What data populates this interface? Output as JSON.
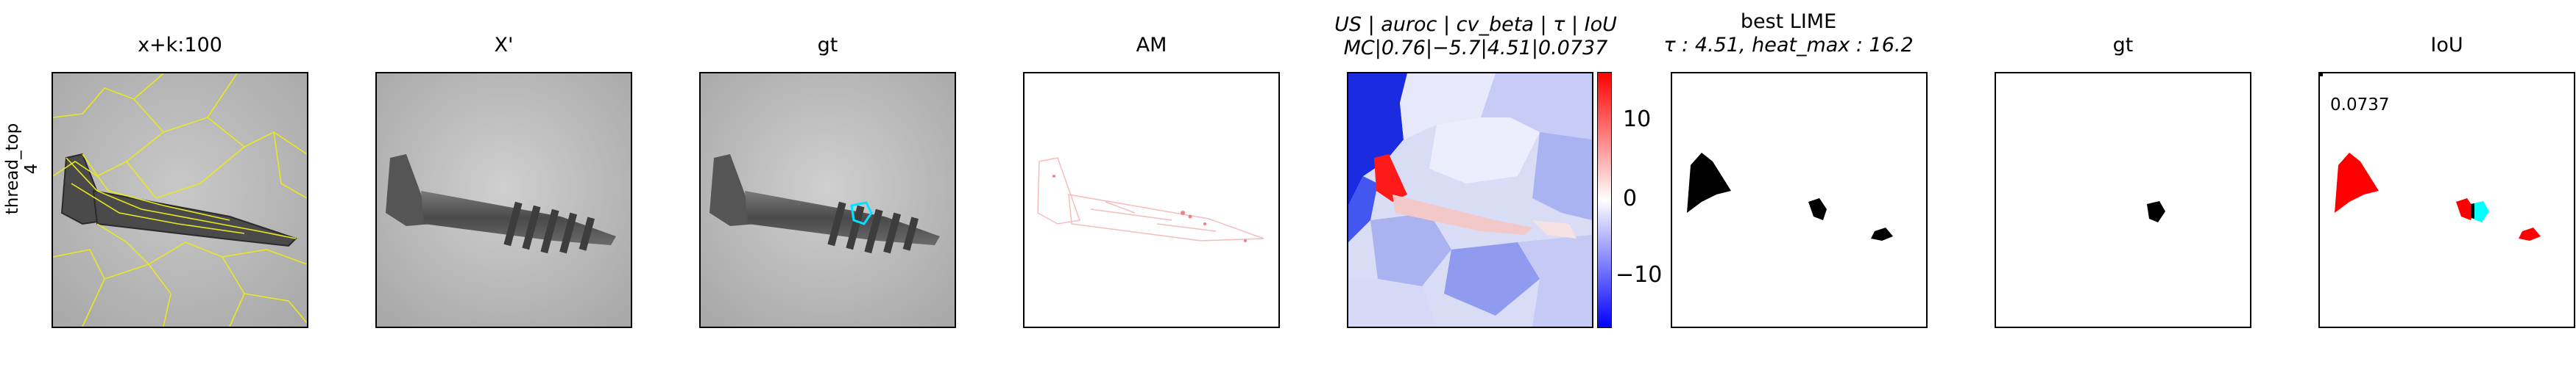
{
  "row_label": {
    "line1": "thread_top",
    "line2": "4"
  },
  "panels": [
    {
      "title": "x+k:100"
    },
    {
      "title": "X'"
    },
    {
      "title": "gt"
    },
    {
      "title": "AM"
    },
    {
      "title_line1": "US | auroc | cv_beta | τ | IoU",
      "title_line2": "MC|0.76|−5.7|4.51|0.0737"
    },
    {
      "title_line1": "best LIME",
      "title_line2": "τ : 4.51, heat_max : 16.2"
    },
    {
      "title": "gt"
    },
    {
      "title": "IoU",
      "value_label": "0.0737"
    }
  ],
  "colorbar": {
    "ticks": [
      "10",
      "0",
      "−10"
    ],
    "colors": {
      "high": "#ff0000",
      "mid": "#ffffff",
      "low": "#0000ff"
    }
  },
  "colors": {
    "segment_outline": "#e8e820",
    "gt_outline": "#00e5ff",
    "iou_red": "#ff0000",
    "iou_cyan": "#00ffff"
  }
}
